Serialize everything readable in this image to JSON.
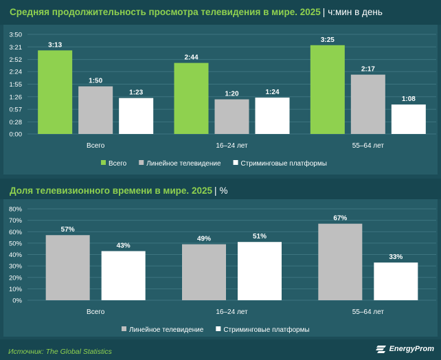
{
  "chart_data": [
    {
      "type": "bar",
      "title": "Средняя продолжительность просмотра телевидения в мире. 2025",
      "unit": "ч:мин в день",
      "categories": [
        "Всего",
        "16–24 лет",
        "55–64 лет"
      ],
      "series": [
        {
          "name": "Всего",
          "color": "#8fd14f",
          "values": [
            193,
            164,
            205
          ],
          "labels": [
            "3:13",
            "2:44",
            "3:25"
          ]
        },
        {
          "name": "Линейное телевидение",
          "color": "#bfbfbf",
          "values": [
            110,
            80,
            137
          ],
          "labels": [
            "1:50",
            "1:20",
            "2:17"
          ]
        },
        {
          "name": "Стриминговые платформы",
          "color": "#ffffff",
          "values": [
            83,
            84,
            68
          ],
          "labels": [
            "1:23",
            "1:24",
            "1:08"
          ]
        }
      ],
      "yticks": [
        0,
        28,
        57,
        86,
        115,
        144,
        172,
        201,
        230
      ],
      "ytick_labels": [
        "0:00",
        "0:28",
        "0:57",
        "1:26",
        "1:55",
        "2:24",
        "2:52",
        "3:21",
        "3:50"
      ],
      "ylim": [
        0,
        230
      ],
      "legend": "bottom"
    },
    {
      "type": "bar",
      "title": "Доля телевизионного времени в мире. 2025",
      "unit": "%",
      "categories": [
        "Всего",
        "16–24 лет",
        "55–64 лет"
      ],
      "series": [
        {
          "name": "Линейное телевидение",
          "color": "#bfbfbf",
          "values": [
            57,
            49,
            67
          ],
          "labels": [
            "57%",
            "49%",
            "67%"
          ]
        },
        {
          "name": "Стриминговые платформы",
          "color": "#ffffff",
          "values": [
            43,
            51,
            33
          ],
          "labels": [
            "43%",
            "51%",
            "33%"
          ]
        }
      ],
      "yticks": [
        0,
        10,
        20,
        30,
        40,
        50,
        60,
        70,
        80
      ],
      "ytick_labels": [
        "0%",
        "10%",
        "20%",
        "30%",
        "40%",
        "50%",
        "60%",
        "70%",
        "80%"
      ],
      "ylim": [
        0,
        80
      ],
      "legend": "bottom"
    }
  ],
  "footer": {
    "source": "Источник: The Global Statistics",
    "brand": "EnergyProm"
  }
}
